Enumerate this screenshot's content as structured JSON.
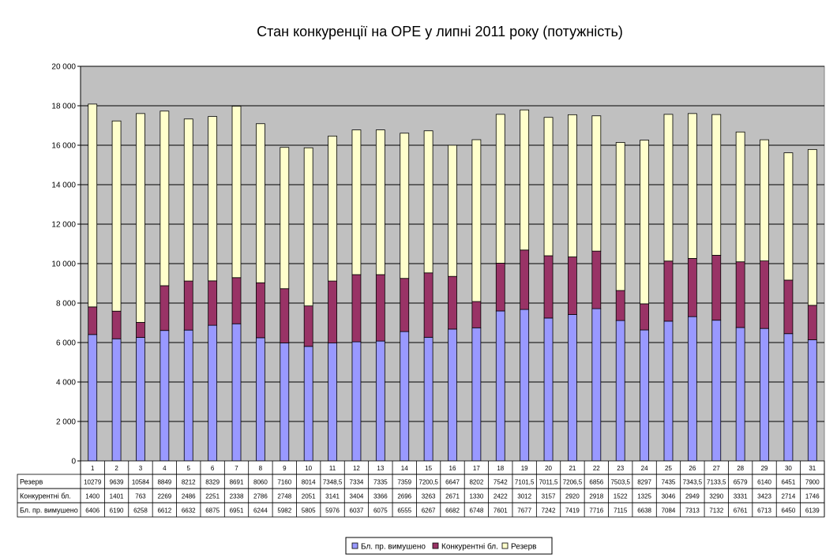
{
  "chart_data": {
    "type": "bar",
    "stacked": true,
    "title": "Стан конкуренції на ОРЕ  у липні 2011 року (потужність)",
    "categories": [
      "1",
      "2",
      "3",
      "4",
      "5",
      "6",
      "7",
      "8",
      "9",
      "10",
      "11",
      "12",
      "13",
      "14",
      "15",
      "16",
      "17",
      "18",
      "19",
      "20",
      "21",
      "22",
      "23",
      "24",
      "25",
      "26",
      "27",
      "28",
      "29",
      "30",
      "31"
    ],
    "series": [
      {
        "name": "Бл. пр. вимушено",
        "color": "#9999ff",
        "values": [
          6406,
          6190,
          6258,
          6612,
          6632,
          6875,
          6951,
          6244,
          5982,
          5805,
          5976,
          6037,
          6075,
          6555,
          6267,
          6682,
          6748,
          7601,
          7677,
          7242,
          7419,
          7716,
          7115,
          6638,
          7084,
          7313,
          7132,
          6761,
          6713,
          6450,
          6139
        ],
        "labels": [
          "6406",
          "6190",
          "6258",
          "6612",
          "6632",
          "6875",
          "6951",
          "6244",
          "5982",
          "5805",
          "5976",
          "6037",
          "6075",
          "6555",
          "6267",
          "6682",
          "6748",
          "7601",
          "7677",
          "7242",
          "7419",
          "7716",
          "7115",
          "6638",
          "7084",
          "7313",
          "7132",
          "6761",
          "6713",
          "6450",
          "6139"
        ]
      },
      {
        "name": "Конкурентні бл.",
        "color": "#993366",
        "values": [
          1400,
          1401,
          763,
          2269,
          2486,
          2251,
          2338,
          2786,
          2748,
          2051,
          3141,
          3404,
          3366,
          2696,
          3263,
          2671,
          1330,
          2422,
          3012,
          3157,
          2920,
          2918,
          1522,
          1325,
          3046,
          2949,
          3290,
          3331,
          3423,
          2714,
          1746
        ],
        "labels": [
          "1400",
          "1401",
          "763",
          "2269",
          "2486",
          "2251",
          "2338",
          "2786",
          "2748",
          "2051",
          "3141",
          "3404",
          "3366",
          "2696",
          "3263",
          "2671",
          "1330",
          "2422",
          "3012",
          "3157",
          "2920",
          "2918",
          "1522",
          "1325",
          "3046",
          "2949",
          "3290",
          "3331",
          "3423",
          "2714",
          "1746"
        ]
      },
      {
        "name": "Резерв",
        "color": "#ffffcc",
        "values": [
          10279,
          9639,
          10584,
          8849,
          8212,
          8329,
          8691,
          8060,
          7160,
          8014,
          7348.5,
          7334,
          7335,
          7359,
          7200.5,
          6647,
          8202,
          7542,
          7101.5,
          7011.5,
          7206.5,
          6856,
          7503.5,
          8297,
          7435,
          7343.5,
          7133.5,
          6579,
          6140,
          6451,
          7900
        ],
        "labels": [
          "10279",
          "9639",
          "10584",
          "8849",
          "8212",
          "8329",
          "8691",
          "8060",
          "7160",
          "8014",
          "7348,5",
          "7334",
          "7335",
          "7359",
          "7200,5",
          "6647",
          "8202",
          "7542",
          "7101,5",
          "7011,5",
          "7206,5",
          "6856",
          "7503,5",
          "8297",
          "7435",
          "7343,5",
          "7133,5",
          "6579",
          "6140",
          "6451",
          "7900"
        ]
      }
    ],
    "ylim": [
      0,
      20000
    ],
    "yticks": [
      "0",
      "2 000",
      "4 000",
      "6 000",
      "8 000",
      "10 000",
      "12 000",
      "14 000",
      "16 000",
      "18 000",
      "20 000"
    ],
    "table_rows": [
      "Резерв",
      "Конкурентні бл.",
      "Бл. пр. вимушено"
    ],
    "legend": [
      "Бл. пр. вимушено",
      "Конкурентні бл.",
      "Резерв"
    ],
    "legend_position": "bottom",
    "grid": true,
    "plot_background": "#c0c0c0"
  }
}
